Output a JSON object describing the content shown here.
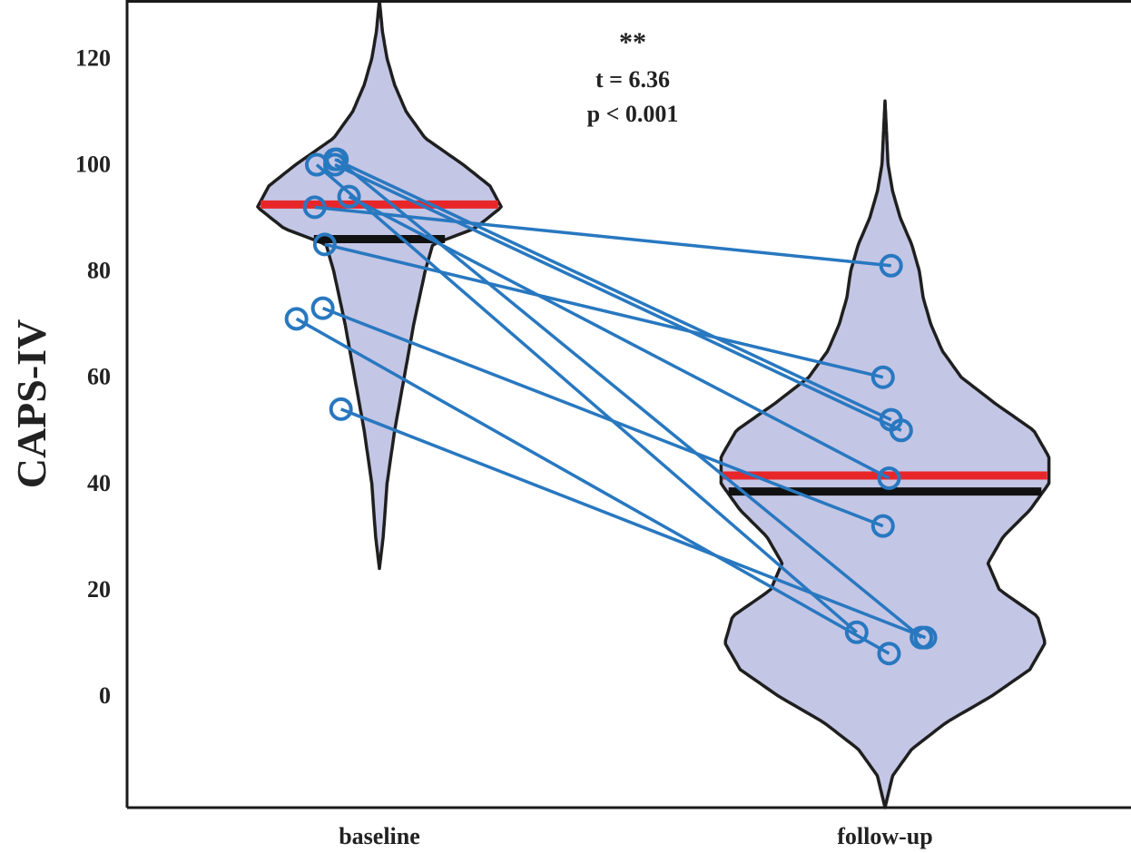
{
  "chart_data": {
    "type": "violin",
    "ylabel": "CAPS-IV",
    "ylim": [
      -21,
      131
    ],
    "yticks": [
      0,
      20,
      40,
      60,
      80,
      100,
      120
    ],
    "categories": [
      "baseline",
      "follow-up"
    ],
    "annotation": {
      "stars": "**",
      "t_text": "t = 6.36",
      "p_text": "p < 0.001"
    },
    "colors": {
      "violin_fill": "#c4c6e5",
      "violin_outline": "#1f1f1f",
      "mean_line": "#e8262a",
      "median_line": "#111111",
      "pair": "#2878c0"
    },
    "violins": [
      {
        "name": "baseline",
        "ymin": 24,
        "ymax": 131,
        "mean": 92.5,
        "median": 86,
        "profile": [
          [
            24,
            0
          ],
          [
            30,
            0.01
          ],
          [
            40,
            0.02
          ],
          [
            50,
            0.04
          ],
          [
            60,
            0.065
          ],
          [
            70,
            0.09
          ],
          [
            80,
            0.12
          ],
          [
            85,
            0.14
          ],
          [
            88,
            0.25
          ],
          [
            92,
            0.32
          ],
          [
            96,
            0.29
          ],
          [
            100,
            0.22
          ],
          [
            105,
            0.12
          ],
          [
            110,
            0.07
          ],
          [
            115,
            0.04
          ],
          [
            120,
            0.02
          ],
          [
            125,
            0.008
          ],
          [
            131,
            0
          ]
        ]
      },
      {
        "name": "follow-up",
        "ymin": -21,
        "ymax": 112,
        "mean": 41.5,
        "median": 38.5,
        "profile": [
          [
            -21,
            0
          ],
          [
            -15,
            0.02
          ],
          [
            -10,
            0.07
          ],
          [
            -5,
            0.16
          ],
          [
            0,
            0.28
          ],
          [
            5,
            0.38
          ],
          [
            10,
            0.42
          ],
          [
            15,
            0.4
          ],
          [
            20,
            0.3
          ],
          [
            25,
            0.27
          ],
          [
            30,
            0.31
          ],
          [
            35,
            0.38
          ],
          [
            40,
            0.43
          ],
          [
            45,
            0.43
          ],
          [
            50,
            0.39
          ],
          [
            55,
            0.29
          ],
          [
            60,
            0.2
          ],
          [
            65,
            0.15
          ],
          [
            70,
            0.12
          ],
          [
            75,
            0.1
          ],
          [
            80,
            0.09
          ],
          [
            85,
            0.07
          ],
          [
            90,
            0.04
          ],
          [
            95,
            0.02
          ],
          [
            100,
            0.008
          ],
          [
            112,
            0
          ]
        ]
      }
    ],
    "pairs": [
      {
        "baseline": {
          "x": 0.845,
          "y": 100
        },
        "followup": {
          "x": 2.18,
          "y": 12
        }
      },
      {
        "baseline": {
          "x": 0.89,
          "y": 101
        },
        "followup": {
          "x": 2.265,
          "y": 52
        }
      },
      {
        "baseline": {
          "x": 0.89,
          "y": 100
        },
        "followup": {
          "x": 2.29,
          "y": 50
        }
      },
      {
        "baseline": {
          "x": 0.84,
          "y": 92
        },
        "followup": {
          "x": 2.265,
          "y": 81
        }
      },
      {
        "baseline": {
          "x": 0.925,
          "y": 94
        },
        "followup": {
          "x": 2.26,
          "y": 41
        }
      },
      {
        "baseline": {
          "x": 0.865,
          "y": 85
        },
        "followup": {
          "x": 2.245,
          "y": 60
        }
      },
      {
        "baseline": {
          "x": 0.795,
          "y": 71
        },
        "followup": {
          "x": 2.26,
          "y": 8
        }
      },
      {
        "baseline": {
          "x": 0.86,
          "y": 73
        },
        "followup": {
          "x": 2.245,
          "y": 32
        }
      },
      {
        "baseline": {
          "x": 0.905,
          "y": 54
        },
        "followup": {
          "x": 2.35,
          "y": 11
        }
      },
      {
        "baseline": {
          "x": 0.895,
          "y": 101
        },
        "followup": {
          "x": 2.34,
          "y": 11
        }
      }
    ]
  }
}
